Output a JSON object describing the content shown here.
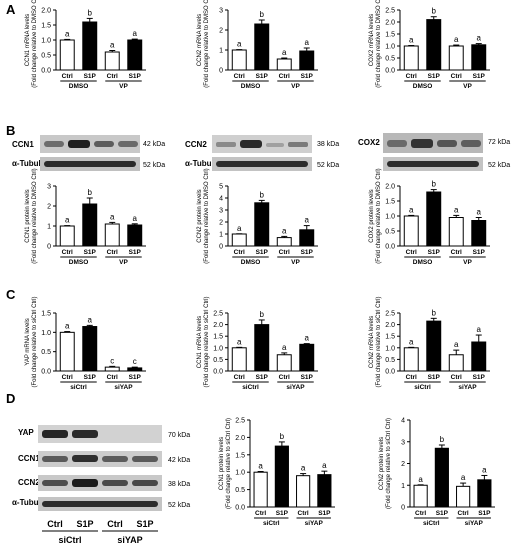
{
  "panels": [
    {
      "id": "A",
      "label": "A"
    },
    {
      "id": "B",
      "label": "B"
    },
    {
      "id": "C",
      "label": "C"
    },
    {
      "id": "D",
      "label": "D"
    }
  ],
  "bar_colors": {
    "ctrl": "#ffffff",
    "s1p": "#000000",
    "stroke": "#000000"
  },
  "blots": {
    "B": [
      {
        "protein": "CCN1",
        "protein_kda": "42 kDa",
        "loading": "α-Tubulin",
        "loading_kda": "52 kDa"
      },
      {
        "protein": "CCN2",
        "protein_kda": "38 kDa",
        "loading": "α-Tubulin",
        "loading_kda": "52 kDa"
      },
      {
        "protein": "COX2",
        "protein_kda": "72 kDa",
        "loading": "α-Tubulin",
        "loading_kda": "52 kDa"
      }
    ],
    "D": {
      "rows": [
        {
          "protein": "YAP",
          "kda": "70 kDa"
        },
        {
          "protein": "CCN1",
          "kda": "42 kDa"
        },
        {
          "protein": "CCN2",
          "kda": "38 kDa"
        },
        {
          "protein": "α-Tubulin",
          "kda": "52 kDa"
        }
      ],
      "lanes": [
        "Ctrl",
        "S1P",
        "Ctrl",
        "S1P"
      ],
      "groups": [
        "siCtrl",
        "siYAP"
      ]
    }
  },
  "chart_data": [
    {
      "type": "bar",
      "panel": "A",
      "ylabel": [
        "CCN1 mRNA levels",
        "(Fold change relative to DMSO Ctrl)"
      ],
      "ylim": [
        0,
        2.0
      ],
      "yticks": [
        0,
        0.5,
        1.0,
        1.5,
        2.0
      ],
      "categories": [
        "Ctrl",
        "S1P",
        "Ctrl",
        "S1P"
      ],
      "groups": [
        "DMSO",
        "VP"
      ],
      "values": [
        1.0,
        1.6,
        0.6,
        1.0
      ],
      "errors": [
        0.02,
        0.12,
        0.05,
        0.03
      ],
      "letters": [
        "a",
        "b",
        "a",
        "a"
      ]
    },
    {
      "type": "bar",
      "panel": "A",
      "ylabel": [
        "CCN2 mRNA levels",
        "(Fold change relative to DMSO Ctrl)"
      ],
      "ylim": [
        0,
        3
      ],
      "yticks": [
        0,
        1,
        2,
        3
      ],
      "categories": [
        "Ctrl",
        "S1P",
        "Ctrl",
        "S1P"
      ],
      "groups": [
        "DMSO",
        "VP"
      ],
      "values": [
        1.0,
        2.3,
        0.55,
        0.95
      ],
      "errors": [
        0.02,
        0.2,
        0.05,
        0.15
      ],
      "letters": [
        "a",
        "b",
        "a",
        "a"
      ]
    },
    {
      "type": "bar",
      "panel": "A",
      "ylabel": [
        "COX2 mRNA levels",
        "(Fold change relative to DMSO Ctrl)"
      ],
      "ylim": [
        0,
        2.5
      ],
      "yticks": [
        0,
        0.5,
        1.0,
        1.5,
        2.0,
        2.5
      ],
      "categories": [
        "Ctrl",
        "S1P",
        "Ctrl",
        "S1P"
      ],
      "groups": [
        "DMSO",
        "VP"
      ],
      "values": [
        1.0,
        2.1,
        1.0,
        1.05
      ],
      "errors": [
        0.02,
        0.12,
        0.04,
        0.05
      ],
      "letters": [
        "a",
        "b",
        "a",
        "a"
      ]
    },
    {
      "type": "bar",
      "panel": "B",
      "ylabel": [
        "CCN1 protein levels",
        "(Fold change relative to DMSO Ctrl)"
      ],
      "ylim": [
        0,
        3
      ],
      "yticks": [
        0,
        1,
        2,
        3
      ],
      "categories": [
        "Ctrl",
        "S1P",
        "Ctrl",
        "S1P"
      ],
      "groups": [
        "DMSO",
        "VP"
      ],
      "values": [
        1.0,
        2.1,
        1.1,
        1.05
      ],
      "errors": [
        0.02,
        0.3,
        0.08,
        0.06
      ],
      "letters": [
        "a",
        "b",
        "a",
        "a"
      ]
    },
    {
      "type": "bar",
      "panel": "B",
      "ylabel": [
        "CCN2 protein levels",
        "(Fold change relative to DMSO Ctrl)"
      ],
      "ylim": [
        0,
        5
      ],
      "yticks": [
        0,
        1,
        2,
        3,
        4,
        5
      ],
      "categories": [
        "Ctrl",
        "S1P",
        "Ctrl",
        "S1P"
      ],
      "groups": [
        "DMSO",
        "VP"
      ],
      "values": [
        1.0,
        3.6,
        0.7,
        1.35
      ],
      "errors": [
        0.02,
        0.2,
        0.1,
        0.35
      ],
      "letters": [
        "a",
        "b",
        "a",
        "a"
      ]
    },
    {
      "type": "bar",
      "panel": "B",
      "ylabel": [
        "COX2 protein levels",
        "(Fold change relative to DMSO Ctrl)"
      ],
      "ylim": [
        0,
        2.0
      ],
      "yticks": [
        0,
        0.5,
        1.0,
        1.5,
        2.0
      ],
      "categories": [
        "Ctrl",
        "S1P",
        "Ctrl",
        "S1P"
      ],
      "groups": [
        "DMSO",
        "VP"
      ],
      "values": [
        1.0,
        1.8,
        0.95,
        0.85
      ],
      "errors": [
        0.02,
        0.08,
        0.07,
        0.1
      ],
      "letters": [
        "a",
        "b",
        "a",
        "a"
      ]
    },
    {
      "type": "bar",
      "panel": "C",
      "ylabel": [
        "YAP mRNA levels",
        "(Fold change relative to siCtrl Ctrl)"
      ],
      "ylim": [
        0,
        1.5
      ],
      "yticks": [
        0,
        0.5,
        1.0,
        1.5
      ],
      "categories": [
        "Ctrl",
        "S1P",
        "Ctrl",
        "S1P"
      ],
      "groups": [
        "siCtrl",
        "siYAP"
      ],
      "values": [
        1.0,
        1.15,
        0.1,
        0.08
      ],
      "errors": [
        0.02,
        0.03,
        0.02,
        0.02
      ],
      "letters": [
        "a",
        "a",
        "c",
        "c"
      ]
    },
    {
      "type": "bar",
      "panel": "C",
      "ylabel": [
        "CCN1 mRNA levels",
        "(Fold change relative to siCtrl Ctrl)"
      ],
      "ylim": [
        0,
        2.5
      ],
      "yticks": [
        0,
        0.5,
        1.0,
        1.5,
        2.0,
        2.5
      ],
      "categories": [
        "Ctrl",
        "S1P",
        "Ctrl",
        "S1P"
      ],
      "groups": [
        "siCtrl",
        "siYAP"
      ],
      "values": [
        1.0,
        2.0,
        0.7,
        1.15
      ],
      "errors": [
        0.02,
        0.2,
        0.08,
        0.03
      ],
      "letters": [
        "a",
        "b",
        "a",
        "a"
      ]
    },
    {
      "type": "bar",
      "panel": "C",
      "ylabel": [
        "CCN2 mRNA levels",
        "(Fold change relative to siCtrl Ctrl)"
      ],
      "ylim": [
        0,
        2.5
      ],
      "yticks": [
        0,
        0.5,
        1.0,
        1.5,
        2.0,
        2.5
      ],
      "categories": [
        "Ctrl",
        "S1P",
        "Ctrl",
        "S1P"
      ],
      "groups": [
        "siCtrl",
        "siYAP"
      ],
      "values": [
        1.0,
        2.15,
        0.7,
        1.25
      ],
      "errors": [
        0.02,
        0.12,
        0.2,
        0.3
      ],
      "letters": [
        "a",
        "b",
        "a",
        "a"
      ]
    },
    {
      "type": "bar",
      "panel": "D",
      "ylabel": [
        "CCN1 protein levels",
        "(Fold change relative to siCtrl Ctrl)"
      ],
      "ylim": [
        0,
        2.5
      ],
      "yticks": [
        0,
        0.5,
        1.0,
        1.5,
        2.0,
        2.5
      ],
      "categories": [
        "Ctrl",
        "S1P",
        "Ctrl",
        "S1P"
      ],
      "groups": [
        "siCtrl",
        "siYAP"
      ],
      "values": [
        1.0,
        1.75,
        0.9,
        0.93
      ],
      "errors": [
        0.02,
        0.12,
        0.06,
        0.1
      ],
      "letters": [
        "a",
        "b",
        "a",
        "a"
      ]
    },
    {
      "type": "bar",
      "panel": "D",
      "ylabel": [
        "CCN2 protein levels",
        "(Fold change relative to siCtrl Ctrl)"
      ],
      "ylim": [
        0,
        4
      ],
      "yticks": [
        0,
        1,
        2,
        3,
        4
      ],
      "categories": [
        "Ctrl",
        "S1P",
        "Ctrl",
        "S1P"
      ],
      "groups": [
        "siCtrl",
        "siYAP"
      ],
      "values": [
        1.0,
        2.7,
        0.95,
        1.25
      ],
      "errors": [
        0.02,
        0.15,
        0.15,
        0.2
      ],
      "letters": [
        "a",
        "b",
        "a",
        "a"
      ]
    }
  ]
}
